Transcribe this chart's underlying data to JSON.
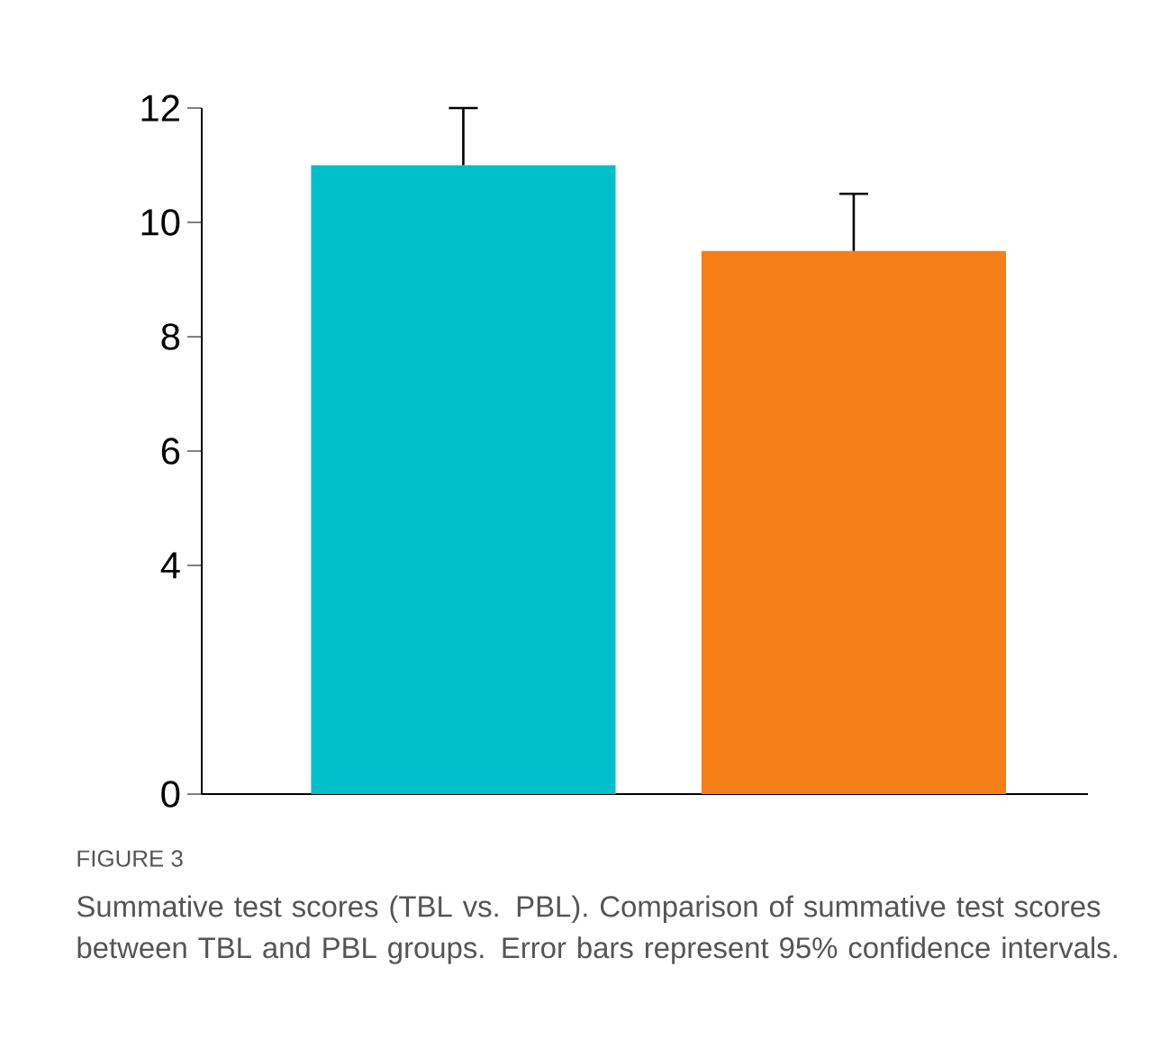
{
  "chart_data": {
    "type": "bar",
    "title": "FIGURE 3",
    "annotations": [
      "Summative test scores (TBL vs. PBL). Comparison of summative test scores between TBL and PBL groups. Error bars represent 95% confidence intervals."
    ],
    "categories": [
      null,
      null
    ],
    "values": [
      11.0,
      9.5
    ],
    "colors": [
      "#00bfc8",
      "#f57f17"
    ],
    "errors": [
      [
        11.0,
        12.0
      ],
      [
        9.5,
        10.5
      ]
    ],
    "ylim": [
      0,
      12
    ],
    "yticks": [
      0,
      4,
      6,
      8,
      10,
      12
    ],
    "grid": false
  }
}
